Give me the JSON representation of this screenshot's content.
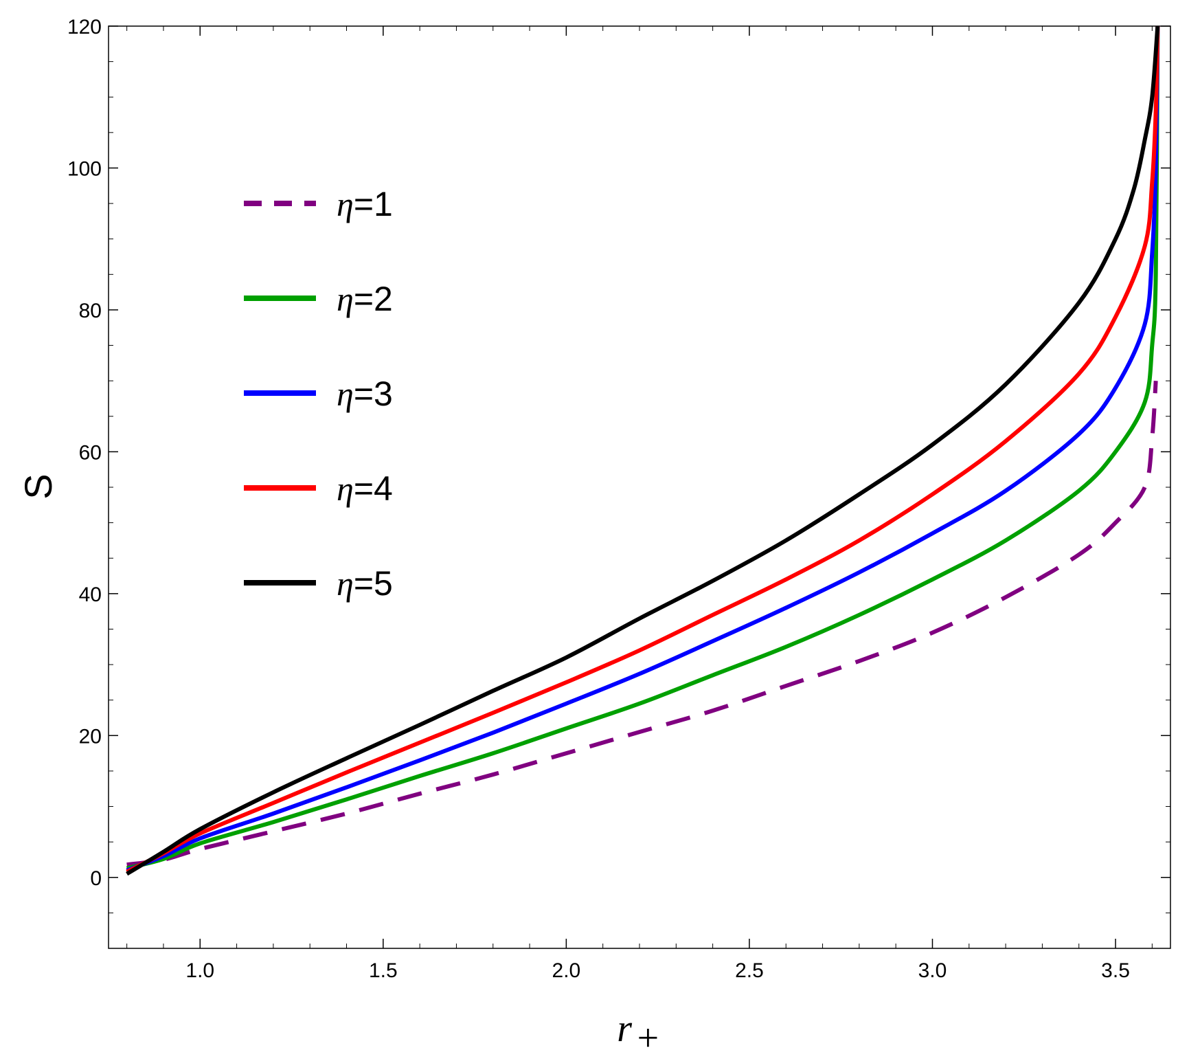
{
  "chart_data": {
    "type": "line",
    "title": "",
    "xlabel": "r",
    "xlabel_sub": "+",
    "ylabel": "S",
    "xlim": [
      0.75,
      3.65
    ],
    "ylim": [
      -10,
      120
    ],
    "xticks": [
      1.0,
      1.5,
      2.0,
      2.5,
      3.0,
      3.5
    ],
    "xtick_labels": [
      "1.0",
      "1.5",
      "2.0",
      "2.5",
      "3.0",
      "3.5"
    ],
    "yticks": [
      0,
      20,
      40,
      60,
      80,
      100,
      120
    ],
    "ytick_labels": [
      "0",
      "20",
      "40",
      "60",
      "80",
      "100",
      "120"
    ],
    "grid": false,
    "legend_position": "upper-left",
    "series": [
      {
        "name": "η=1",
        "eta": "η",
        "eq": "=1",
        "color": "#800080",
        "dashed": true,
        "x": [
          0.8,
          0.9,
          1.0,
          1.2,
          1.4,
          1.6,
          1.8,
          2.0,
          2.2,
          2.4,
          2.6,
          2.8,
          3.0,
          3.2,
          3.4,
          3.5,
          3.58,
          3.6,
          3.61
        ],
        "y": [
          1.8,
          2.5,
          4.0,
          6.5,
          9.0,
          11.8,
          14.5,
          17.5,
          20.5,
          23.5,
          27.0,
          30.5,
          34.5,
          39.5,
          45.5,
          50.0,
          55.0,
          62.0,
          70.0
        ]
      },
      {
        "name": "η=2",
        "eta": "η",
        "eq": "=2",
        "color": "#00a000",
        "dashed": false,
        "x": [
          0.8,
          0.9,
          1.0,
          1.2,
          1.4,
          1.6,
          1.8,
          2.0,
          2.2,
          2.4,
          2.6,
          2.8,
          3.0,
          3.2,
          3.4,
          3.5,
          3.58,
          3.6,
          3.61,
          3.615
        ],
        "y": [
          1.3,
          2.6,
          4.8,
          7.8,
          11.0,
          14.3,
          17.5,
          21.0,
          24.5,
          28.5,
          32.5,
          37.0,
          42.0,
          47.5,
          54.5,
          60.0,
          67.0,
          75.0,
          85.0,
          120.0
        ]
      },
      {
        "name": "η=3",
        "eta": "η",
        "eq": "=3",
        "color": "#0000ff",
        "dashed": false,
        "x": [
          0.8,
          0.9,
          1.0,
          1.2,
          1.4,
          1.6,
          1.8,
          2.0,
          2.2,
          2.4,
          2.6,
          2.8,
          3.0,
          3.2,
          3.4,
          3.5,
          3.58,
          3.6,
          3.61,
          3.615
        ],
        "y": [
          1.0,
          3.0,
          5.5,
          9.0,
          12.7,
          16.5,
          20.4,
          24.5,
          28.7,
          33.3,
          38.0,
          43.0,
          48.5,
          54.5,
          62.5,
          69.0,
          78.0,
          88.0,
          100.0,
          120.0
        ]
      },
      {
        "name": "η=4",
        "eta": "η",
        "eq": "=4",
        "color": "#ff0000",
        "dashed": false,
        "x": [
          0.8,
          0.9,
          1.0,
          1.2,
          1.4,
          1.6,
          1.8,
          2.0,
          2.2,
          2.4,
          2.6,
          2.8,
          3.0,
          3.2,
          3.4,
          3.5,
          3.58,
          3.6,
          3.61,
          3.615
        ],
        "y": [
          0.8,
          3.4,
          6.2,
          10.5,
          14.8,
          19.0,
          23.2,
          27.5,
          32.0,
          37.0,
          42.0,
          47.5,
          54.0,
          61.5,
          71.0,
          79.0,
          89.0,
          98.0,
          108.0,
          120.0
        ]
      },
      {
        "name": "η=5",
        "eta": "η",
        "eq": "=5",
        "color": "#000000",
        "dashed": false,
        "x": [
          0.8,
          0.9,
          1.0,
          1.2,
          1.4,
          1.6,
          1.8,
          2.0,
          2.2,
          2.4,
          2.6,
          2.8,
          3.0,
          3.2,
          3.4,
          3.5,
          3.55,
          3.58,
          3.6,
          3.615
        ],
        "y": [
          0.5,
          3.6,
          6.8,
          12.0,
          16.8,
          21.5,
          26.3,
          31.0,
          36.5,
          41.8,
          47.5,
          54.0,
          61.0,
          69.5,
          81.0,
          90.0,
          97.0,
          104.0,
          110.0,
          120.0
        ]
      }
    ]
  }
}
